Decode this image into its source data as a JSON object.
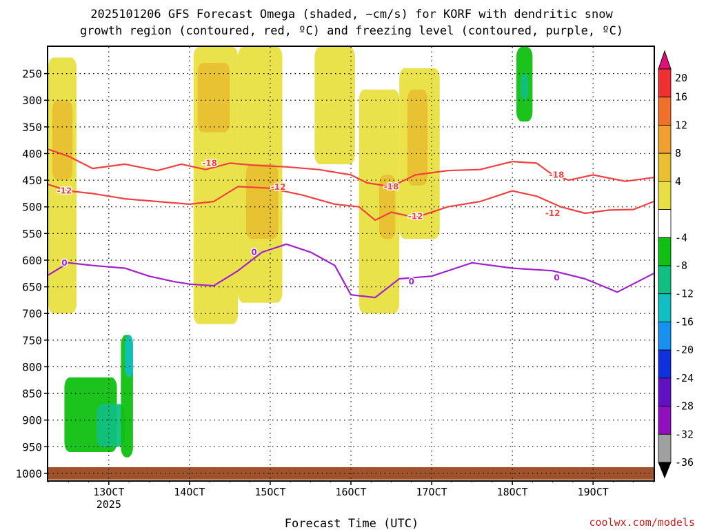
{
  "title_line1": "2025101206 GFS Forecast Omega (shaded, −cm/s) for KORF with dendritic snow",
  "title_line2": "growth region (contoured, red, ºC) and freezing level (contoured, purple, ºC)",
  "credit": "coolwx.com/models",
  "chart_data": {
    "type": "heatmap",
    "title": "2025101206 GFS Forecast Omega (shaded, −cm/s) for KORF with dendritic snow growth region (contoured, red, ºC) and freezing level (contoured, purple, ºC)",
    "xlabel": "Forecast Time (UTC)",
    "ylabel": "",
    "x_start_hours_label": "12 06Z",
    "x_ticks": [
      {
        "label": "13OCT",
        "sub": "2025",
        "day": 13
      },
      {
        "label": "14OCT",
        "sub": "",
        "day": 14
      },
      {
        "label": "15OCT",
        "sub": "",
        "day": 15
      },
      {
        "label": "16OCT",
        "sub": "",
        "day": 16
      },
      {
        "label": "17OCT",
        "sub": "",
        "day": 17
      },
      {
        "label": "18OCT",
        "sub": "",
        "day": 18
      },
      {
        "label": "19OCT",
        "sub": "",
        "day": 19
      }
    ],
    "xlim_days": [
      12.25,
      19.75
    ],
    "y_ticks": [
      250,
      300,
      350,
      400,
      450,
      500,
      550,
      600,
      650,
      700,
      750,
      800,
      850,
      900,
      950,
      1000
    ],
    "ylim_hpa": [
      200,
      1013
    ],
    "y_scale": "linear-pressure",
    "grid": "dotted",
    "colorbar": {
      "labels": [
        "20",
        "16",
        "12",
        "8",
        "4",
        "-4",
        "-8",
        "-12",
        "-16",
        "-20",
        "-24",
        "-28",
        "-32",
        "-36"
      ],
      "colors": [
        "#e0107a",
        "#f03030",
        "#f07028",
        "#f0a030",
        "#e8c030",
        "#e8e040",
        "#ffffff",
        "#10c010",
        "#10c080",
        "#10c0c0",
        "#1890f0",
        "#1030e0",
        "#6010c0",
        "#9010c0",
        "#a0a0a0",
        "#000000"
      ]
    },
    "contours": [
      {
        "name": "-18",
        "color": "#f04040",
        "points": [
          [
            12.25,
            392
          ],
          [
            12.5,
            405
          ],
          [
            12.8,
            428
          ],
          [
            13.2,
            420
          ],
          [
            13.6,
            432
          ],
          [
            13.9,
            420
          ],
          [
            14.2,
            430
          ],
          [
            14.5,
            418
          ],
          [
            14.8,
            422
          ],
          [
            15.2,
            425
          ],
          [
            15.6,
            430
          ],
          [
            16.0,
            440
          ],
          [
            16.2,
            455
          ],
          [
            16.5,
            462
          ],
          [
            16.8,
            440
          ],
          [
            17.2,
            432
          ],
          [
            17.6,
            430
          ],
          [
            18.0,
            415
          ],
          [
            18.3,
            418
          ],
          [
            18.5,
            440
          ],
          [
            18.7,
            450
          ],
          [
            19.0,
            440
          ],
          [
            19.4,
            452
          ],
          [
            19.75,
            445
          ]
        ],
        "labels": [
          [
            14.25,
            418
          ],
          [
            18.55,
            440
          ],
          [
            16.5,
            462
          ]
        ]
      },
      {
        "name": "-12",
        "color": "#f04040",
        "points": [
          [
            12.25,
            458
          ],
          [
            12.5,
            470
          ],
          [
            12.8,
            475
          ],
          [
            13.2,
            485
          ],
          [
            13.6,
            490
          ],
          [
            14.0,
            495
          ],
          [
            14.3,
            490
          ],
          [
            14.6,
            462
          ],
          [
            15.0,
            465
          ],
          [
            15.4,
            478
          ],
          [
            15.8,
            495
          ],
          [
            16.1,
            500
          ],
          [
            16.3,
            525
          ],
          [
            16.5,
            510
          ],
          [
            16.8,
            520
          ],
          [
            17.2,
            500
          ],
          [
            17.6,
            490
          ],
          [
            18.0,
            470
          ],
          [
            18.3,
            480
          ],
          [
            18.6,
            500
          ],
          [
            18.9,
            512
          ],
          [
            19.2,
            506
          ],
          [
            19.5,
            505
          ],
          [
            19.75,
            490
          ]
        ],
        "labels": [
          [
            12.45,
            470
          ],
          [
            15.1,
            463
          ],
          [
            16.8,
            518
          ],
          [
            18.5,
            512
          ]
        ]
      },
      {
        "name": "0",
        "color": "#a020d0",
        "points": [
          [
            12.25,
            628
          ],
          [
            12.5,
            605
          ],
          [
            12.8,
            610
          ],
          [
            13.2,
            615
          ],
          [
            13.5,
            630
          ],
          [
            13.8,
            640
          ],
          [
            14.0,
            645
          ],
          [
            14.3,
            648
          ],
          [
            14.6,
            620
          ],
          [
            14.9,
            585
          ],
          [
            15.2,
            570
          ],
          [
            15.5,
            585
          ],
          [
            15.8,
            610
          ],
          [
            16.0,
            665
          ],
          [
            16.3,
            670
          ],
          [
            16.6,
            635
          ],
          [
            17.0,
            630
          ],
          [
            17.5,
            605
          ],
          [
            18.0,
            615
          ],
          [
            18.5,
            620
          ],
          [
            18.9,
            635
          ],
          [
            19.3,
            660
          ],
          [
            19.75,
            625
          ]
        ],
        "labels": [
          [
            12.45,
            605
          ],
          [
            14.8,
            585
          ],
          [
            16.75,
            640
          ],
          [
            18.55,
            633
          ]
        ]
      }
    ],
    "omega_regions": [
      {
        "value": 4,
        "x": [
          12.25,
          12.6
        ],
        "y": [
          220,
          700
        ]
      },
      {
        "value": 8,
        "x": [
          12.3,
          12.55
        ],
        "y": [
          300,
          450
        ]
      },
      {
        "value": 4,
        "x": [
          14.05,
          14.6
        ],
        "y": [
          200,
          720
        ]
      },
      {
        "value": 8,
        "x": [
          14.1,
          14.5
        ],
        "y": [
          230,
          360
        ]
      },
      {
        "value": 4,
        "x": [
          14.6,
          15.15
        ],
        "y": [
          200,
          680
        ]
      },
      {
        "value": 8,
        "x": [
          14.7,
          15.1
        ],
        "y": [
          420,
          560
        ]
      },
      {
        "value": 4,
        "x": [
          15.55,
          16.05
        ],
        "y": [
          200,
          420
        ]
      },
      {
        "value": 4,
        "x": [
          16.1,
          16.6
        ],
        "y": [
          280,
          700
        ]
      },
      {
        "value": 8,
        "x": [
          16.35,
          16.55
        ],
        "y": [
          440,
          560
        ]
      },
      {
        "value": 4,
        "x": [
          16.6,
          17.1
        ],
        "y": [
          240,
          560
        ]
      },
      {
        "value": 8,
        "x": [
          16.7,
          16.95
        ],
        "y": [
          280,
          460
        ]
      },
      {
        "value": -8,
        "x": [
          12.45,
          13.1
        ],
        "y": [
          820,
          960
        ]
      },
      {
        "value": -12,
        "x": [
          12.85,
          13.2
        ],
        "y": [
          870,
          950
        ]
      },
      {
        "value": -8,
        "x": [
          13.15,
          13.3
        ],
        "y": [
          740,
          970
        ]
      },
      {
        "value": -16,
        "x": [
          13.2,
          13.3
        ],
        "y": [
          740,
          820
        ]
      },
      {
        "value": -8,
        "x": [
          18.05,
          18.25
        ],
        "y": [
          200,
          340
        ]
      },
      {
        "value": -12,
        "x": [
          18.1,
          18.2
        ],
        "y": [
          250,
          300
        ]
      }
    ]
  },
  "omega_regions_note": ""
}
